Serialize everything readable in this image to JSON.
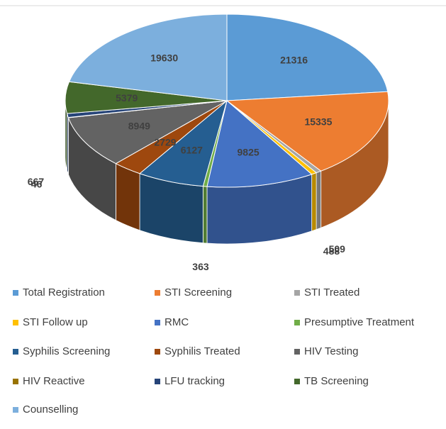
{
  "chart_data": {
    "type": "pie",
    "categories": [
      "Total Registration",
      "STI Screening",
      "STI Treated",
      "STI Follow up",
      "RMC",
      "Presumptive Treatment",
      "Syphilis Screening",
      "Syphilis Treated",
      "HIV Testing",
      "HIV Reactive",
      "LFU tracking",
      "TB Screening",
      "Counselling"
    ],
    "values": [
      21316,
      15335,
      509,
      488,
      9825,
      363,
      6127,
      2729,
      8949,
      46,
      667,
      5379,
      19630
    ],
    "colors": [
      "#5b9bd5",
      "#ed7d31",
      "#a5a5a5",
      "#ffc000",
      "#4472c4",
      "#70ad47",
      "#255e91",
      "#9e480e",
      "#636363",
      "#997300",
      "#264478",
      "#43682b",
      "#7cafdd"
    ]
  }
}
